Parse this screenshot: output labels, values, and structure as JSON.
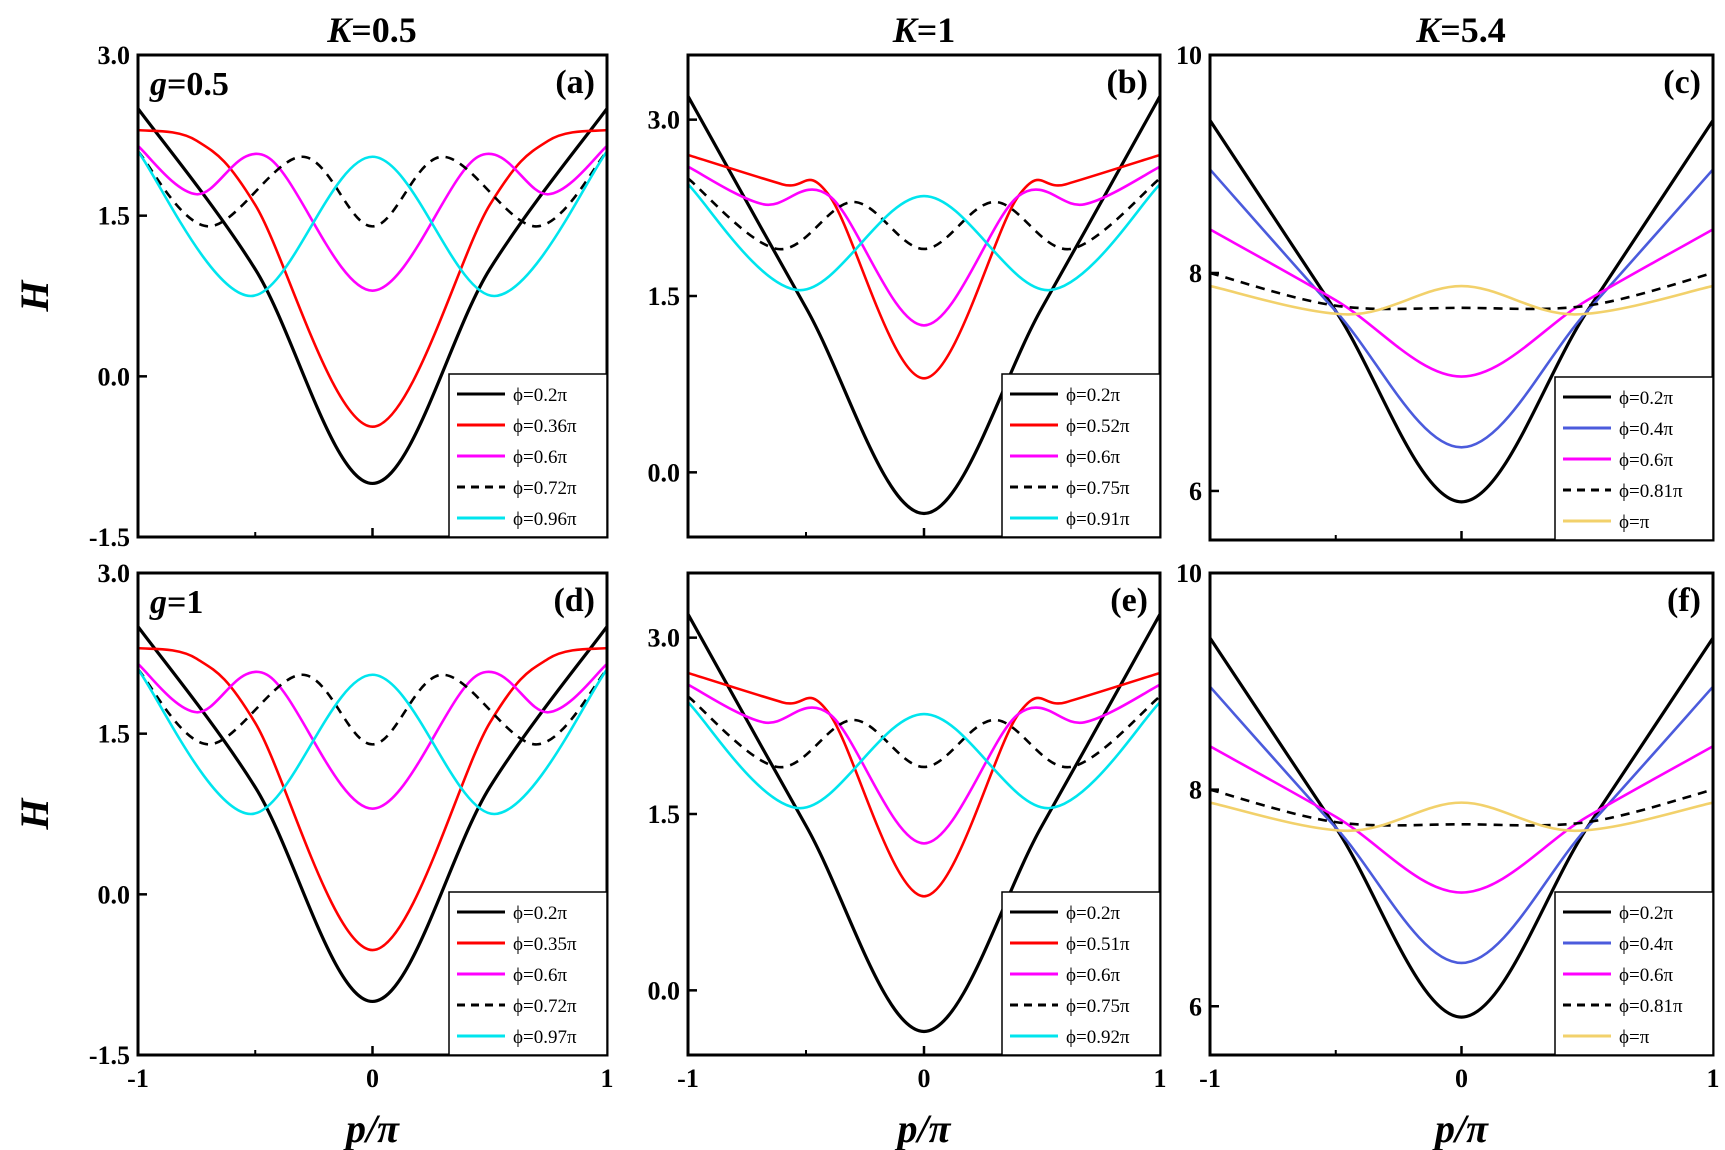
{
  "figure": {
    "column_titles": [
      {
        "pre": "K",
        "post": "=0.5"
      },
      {
        "pre": "K",
        "post": "=1"
      },
      {
        "pre": "K",
        "post": "=5.4"
      }
    ],
    "row_labels": [
      {
        "pre": "g",
        "post": "=0.5"
      },
      {
        "pre": "g",
        "post": "=1"
      }
    ],
    "ylabel": "H",
    "xlabel": "p/π"
  },
  "chart_data": [
    {
      "type": "line",
      "label": "(a)",
      "xlabel": "p/π",
      "ylabel": "H",
      "xlim": [
        -1,
        1
      ],
      "ylim": [
        -1.5,
        3.0
      ],
      "xticks": [
        "-1",
        "0",
        "1"
      ],
      "yticks": [
        "3.0",
        "1.5",
        "0.0",
        "-1.5"
      ],
      "legend_position": "bottom-right",
      "series": [
        {
          "name": "ϕ=0.2π",
          "color": "#000000",
          "dash": false,
          "x": [
            -1,
            -0.5,
            0,
            0.5,
            1
          ],
          "y": [
            2.5,
            1.0,
            -1.0,
            1.0,
            2.5
          ]
        },
        {
          "name": "ϕ=0.36π",
          "color": "#ff0000",
          "dash": false,
          "x": [
            -1,
            -0.75,
            -0.5,
            0,
            0.5,
            0.75,
            1
          ],
          "y": [
            2.3,
            2.2,
            1.6,
            -0.47,
            1.6,
            2.2,
            2.3
          ]
        },
        {
          "name": "ϕ=0.6π",
          "color": "#ff00ff",
          "dash": false,
          "x": [
            -1,
            -0.75,
            -0.45,
            0,
            0.45,
            0.75,
            1
          ],
          "y": [
            2.15,
            1.7,
            2.05,
            0.8,
            2.05,
            1.7,
            2.15
          ]
        },
        {
          "name": "ϕ=0.72π",
          "color": "#000000",
          "dash": true,
          "x": [
            -1,
            -0.7,
            -0.3,
            0,
            0.3,
            0.7,
            1
          ],
          "y": [
            2.1,
            1.4,
            2.05,
            1.4,
            2.05,
            1.4,
            2.1
          ]
        },
        {
          "name": "ϕ=0.96π",
          "color": "#00e5ee",
          "dash": false,
          "x": [
            -1,
            -0.52,
            0,
            0.52,
            1
          ],
          "y": [
            2.1,
            0.75,
            2.05,
            0.75,
            2.1
          ]
        }
      ]
    },
    {
      "type": "line",
      "label": "(b)",
      "xlabel": "p/π",
      "ylabel": "H",
      "xlim": [
        -1,
        1
      ],
      "ylim": [
        -0.55,
        3.55
      ],
      "xticks": [
        "-1",
        "0",
        "1"
      ],
      "yticks": [
        "3.0",
        "1.5",
        "0.0"
      ],
      "legend_position": "bottom-right",
      "series": [
        {
          "name": "ϕ=0.2π",
          "color": "#000000",
          "dash": false,
          "x": [
            -1,
            -0.5,
            0,
            0.5,
            1
          ],
          "y": [
            3.2,
            1.4,
            -0.35,
            1.4,
            3.2
          ]
        },
        {
          "name": "ϕ=0.52π",
          "color": "#ff0000",
          "dash": false,
          "x": [
            -1,
            -0.6,
            -0.4,
            0,
            0.4,
            0.6,
            1
          ],
          "y": [
            2.7,
            2.45,
            2.35,
            0.8,
            2.35,
            2.45,
            2.7
          ]
        },
        {
          "name": "ϕ=0.6π",
          "color": "#ff00ff",
          "dash": false,
          "x": [
            -1,
            -0.68,
            -0.4,
            0,
            0.4,
            0.68,
            1
          ],
          "y": [
            2.6,
            2.28,
            2.35,
            1.25,
            2.35,
            2.28,
            2.6
          ]
        },
        {
          "name": "ϕ=0.75π",
          "color": "#000000",
          "dash": true,
          "x": [
            -1,
            -0.62,
            -0.3,
            0,
            0.3,
            0.62,
            1
          ],
          "y": [
            2.5,
            1.9,
            2.3,
            1.9,
            2.3,
            1.9,
            2.5
          ]
        },
        {
          "name": "ϕ=0.91π",
          "color": "#00e5ee",
          "dash": false,
          "x": [
            -1,
            -0.53,
            0,
            0.53,
            1
          ],
          "y": [
            2.45,
            1.55,
            2.35,
            1.55,
            2.45
          ]
        }
      ]
    },
    {
      "type": "line",
      "label": "(c)",
      "xlabel": "p/π",
      "ylabel": "H",
      "xlim": [
        -1,
        1
      ],
      "ylim": [
        5.55,
        10.0
      ],
      "xticks": [
        "-1",
        "0",
        "1"
      ],
      "yticks": [
        "10",
        "8",
        "6"
      ],
      "legend_position": "bottom-right",
      "series": [
        {
          "name": "ϕ=0.2π",
          "color": "#000000",
          "dash": false,
          "x": [
            -1,
            -0.5,
            0,
            0.5,
            1
          ],
          "y": [
            9.4,
            7.65,
            5.9,
            7.65,
            9.4
          ]
        },
        {
          "name": "ϕ=0.4π",
          "color": "#4b5bdc",
          "dash": false,
          "x": [
            -1,
            -0.5,
            0,
            0.5,
            1
          ],
          "y": [
            8.95,
            7.65,
            6.4,
            7.65,
            8.95
          ]
        },
        {
          "name": "ϕ=0.6π",
          "color": "#ff00ff",
          "dash": false,
          "x": [
            -1,
            -0.5,
            0,
            0.5,
            1
          ],
          "y": [
            8.4,
            7.75,
            7.05,
            7.75,
            8.4
          ]
        },
        {
          "name": "ϕ=0.81π",
          "color": "#000000",
          "dash": true,
          "x": [
            -1,
            -0.5,
            0,
            0.5,
            1
          ],
          "y": [
            8.0,
            7.7,
            7.68,
            7.7,
            8.0
          ]
        },
        {
          "name": "ϕ=π",
          "color": "#f2d16b",
          "dash": false,
          "x": [
            -1,
            -0.45,
            0,
            0.45,
            1
          ],
          "y": [
            7.88,
            7.62,
            7.88,
            7.62,
            7.88
          ]
        }
      ]
    },
    {
      "type": "line",
      "label": "(d)",
      "xlabel": "p/π",
      "ylabel": "H",
      "xlim": [
        -1,
        1
      ],
      "ylim": [
        -1.5,
        3.0
      ],
      "xticks": [
        "-1",
        "0",
        "1"
      ],
      "yticks": [
        "3.0",
        "1.5",
        "0.0",
        "-1.5"
      ],
      "legend_position": "bottom-right",
      "series": [
        {
          "name": "ϕ=0.2π",
          "color": "#000000",
          "dash": false,
          "x": [
            -1,
            -0.5,
            0,
            0.5,
            1
          ],
          "y": [
            2.5,
            1.0,
            -1.0,
            1.0,
            2.5
          ]
        },
        {
          "name": "ϕ=0.35π",
          "color": "#ff0000",
          "dash": false,
          "x": [
            -1,
            -0.75,
            -0.5,
            0,
            0.5,
            0.75,
            1
          ],
          "y": [
            2.3,
            2.2,
            1.6,
            -0.52,
            1.6,
            2.2,
            2.3
          ]
        },
        {
          "name": "ϕ=0.6π",
          "color": "#ff00ff",
          "dash": false,
          "x": [
            -1,
            -0.75,
            -0.45,
            0,
            0.45,
            0.75,
            1
          ],
          "y": [
            2.15,
            1.7,
            2.05,
            0.8,
            2.05,
            1.7,
            2.15
          ]
        },
        {
          "name": "ϕ=0.72π",
          "color": "#000000",
          "dash": true,
          "x": [
            -1,
            -0.7,
            -0.3,
            0,
            0.3,
            0.7,
            1
          ],
          "y": [
            2.1,
            1.4,
            2.05,
            1.4,
            2.05,
            1.4,
            2.1
          ]
        },
        {
          "name": "ϕ=0.97π",
          "color": "#00e5ee",
          "dash": false,
          "x": [
            -1,
            -0.52,
            0,
            0.52,
            1
          ],
          "y": [
            2.1,
            0.75,
            2.05,
            0.75,
            2.1
          ]
        }
      ]
    },
    {
      "type": "line",
      "label": "(e)",
      "xlabel": "p/π",
      "ylabel": "H",
      "xlim": [
        -1,
        1
      ],
      "ylim": [
        -0.55,
        3.55
      ],
      "xticks": [
        "-1",
        "0",
        "1"
      ],
      "yticks": [
        "3.0",
        "1.5",
        "0.0"
      ],
      "legend_position": "bottom-right",
      "series": [
        {
          "name": "ϕ=0.2π",
          "color": "#000000",
          "dash": false,
          "x": [
            -1,
            -0.5,
            0,
            0.5,
            1
          ],
          "y": [
            3.2,
            1.4,
            -0.35,
            1.4,
            3.2
          ]
        },
        {
          "name": "ϕ=0.51π",
          "color": "#ff0000",
          "dash": false,
          "x": [
            -1,
            -0.6,
            -0.4,
            0,
            0.4,
            0.6,
            1
          ],
          "y": [
            2.7,
            2.45,
            2.35,
            0.8,
            2.35,
            2.45,
            2.7
          ]
        },
        {
          "name": "ϕ=0.6π",
          "color": "#ff00ff",
          "dash": false,
          "x": [
            -1,
            -0.68,
            -0.4,
            0,
            0.4,
            0.68,
            1
          ],
          "y": [
            2.6,
            2.28,
            2.35,
            1.25,
            2.35,
            2.28,
            2.6
          ]
        },
        {
          "name": "ϕ=0.75π",
          "color": "#000000",
          "dash": true,
          "x": [
            -1,
            -0.62,
            -0.3,
            0,
            0.3,
            0.62,
            1
          ],
          "y": [
            2.5,
            1.9,
            2.3,
            1.9,
            2.3,
            1.9,
            2.5
          ]
        },
        {
          "name": "ϕ=0.92π",
          "color": "#00e5ee",
          "dash": false,
          "x": [
            -1,
            -0.53,
            0,
            0.53,
            1
          ],
          "y": [
            2.45,
            1.55,
            2.35,
            1.55,
            2.45
          ]
        }
      ]
    },
    {
      "type": "line",
      "label": "(f)",
      "xlabel": "p/π",
      "ylabel": "H",
      "xlim": [
        -1,
        1
      ],
      "ylim": [
        5.55,
        10.0
      ],
      "xticks": [
        "-1",
        "0",
        "1"
      ],
      "yticks": [
        "10",
        "8",
        "6"
      ],
      "legend_position": "bottom-right",
      "series": [
        {
          "name": "ϕ=0.2π",
          "color": "#000000",
          "dash": false,
          "x": [
            -1,
            -0.5,
            0,
            0.5,
            1
          ],
          "y": [
            9.4,
            7.65,
            5.9,
            7.65,
            9.4
          ]
        },
        {
          "name": "ϕ=0.4π",
          "color": "#4b5bdc",
          "dash": false,
          "x": [
            -1,
            -0.5,
            0,
            0.5,
            1
          ],
          "y": [
            8.95,
            7.65,
            6.4,
            7.65,
            8.95
          ]
        },
        {
          "name": "ϕ=0.6π",
          "color": "#ff00ff",
          "dash": false,
          "x": [
            -1,
            -0.5,
            0,
            0.5,
            1
          ],
          "y": [
            8.4,
            7.75,
            7.05,
            7.75,
            8.4
          ]
        },
        {
          "name": "ϕ=0.81π",
          "color": "#000000",
          "dash": true,
          "x": [
            -1,
            -0.5,
            0,
            0.5,
            1
          ],
          "y": [
            8.0,
            7.7,
            7.68,
            7.7,
            8.0
          ]
        },
        {
          "name": "ϕ=π",
          "color": "#f2d16b",
          "dash": false,
          "x": [
            -1,
            -0.45,
            0,
            0.45,
            1
          ],
          "y": [
            7.88,
            7.62,
            7.88,
            7.62,
            7.88
          ]
        }
      ]
    }
  ]
}
